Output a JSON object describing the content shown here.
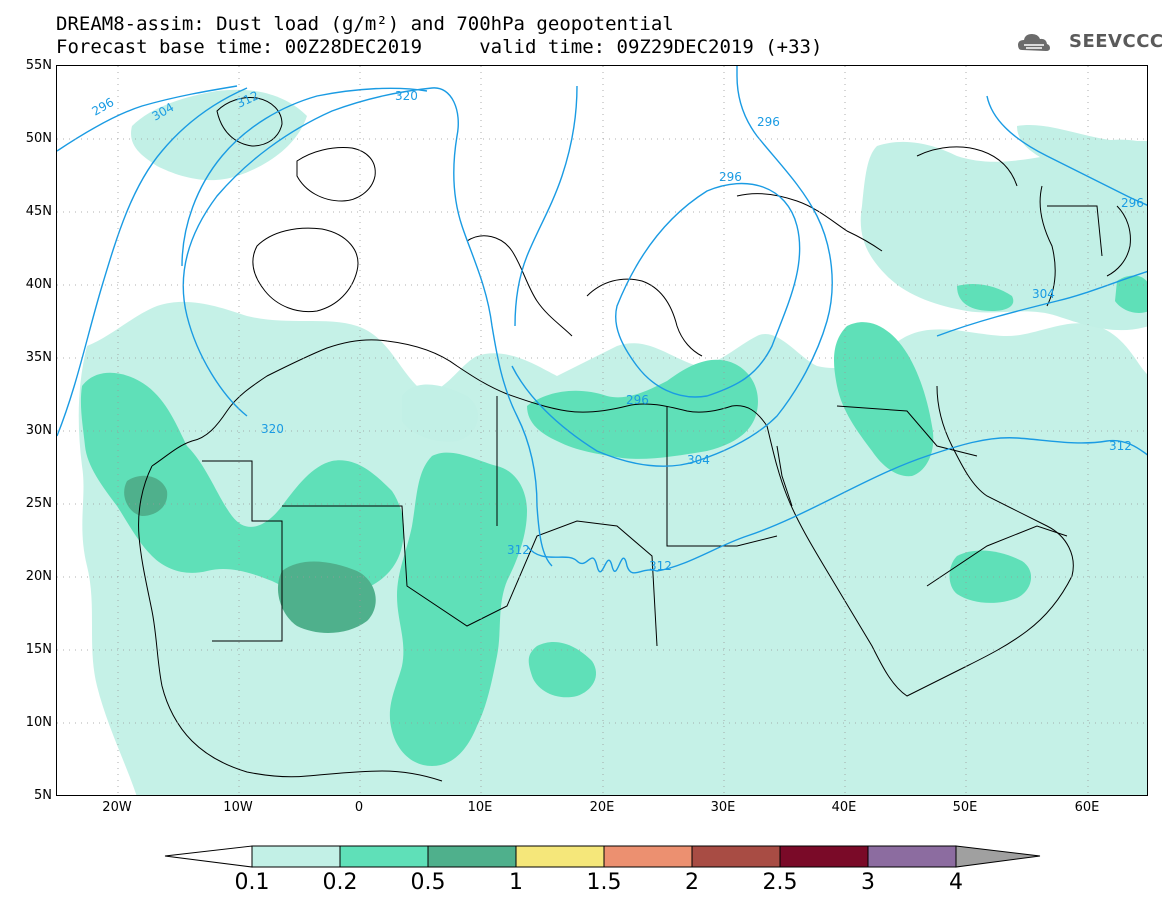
{
  "header": {
    "title_line1": "DREAM8-assim: Dust load (g/m²) and 700hPa geopotential",
    "title_line2": "Forecast base time: 00Z28DEC2019     valid time: 09Z29DEC2019 (+33)"
  },
  "logo": {
    "text": "SEEVCCC",
    "icon": "cloud-logo-icon"
  },
  "map": {
    "lat_labels": [
      "55N",
      "50N",
      "45N",
      "40N",
      "35N",
      "30N",
      "25N",
      "20N",
      "15N",
      "10N",
      "5N"
    ],
    "lon_labels": [
      "20W",
      "10W",
      "0",
      "10E",
      "20E",
      "30E",
      "40E",
      "50E",
      "60E"
    ],
    "extent": {
      "lon_min": -25,
      "lon_max": 65,
      "lat_min": 5,
      "lat_max": 55
    },
    "contour_color": "#1a9be3",
    "contour_labels": [
      "296",
      "304",
      "312",
      "320",
      "320",
      "296",
      "296",
      "304",
      "312",
      "312",
      "304",
      "296",
      "312",
      "296"
    ]
  },
  "colorbar": {
    "levels": [
      "0.1",
      "0.2",
      "0.5",
      "1",
      "1.5",
      "2",
      "2.5",
      "3",
      "4"
    ],
    "colors": [
      "#ffffff",
      "#c2f0e6",
      "#5fe0b8",
      "#4fb08c",
      "#f5e77a",
      "#ec9070",
      "#a84c44",
      "#7a0a28",
      "#8c6ca0",
      "#a0a0a0"
    ]
  }
}
